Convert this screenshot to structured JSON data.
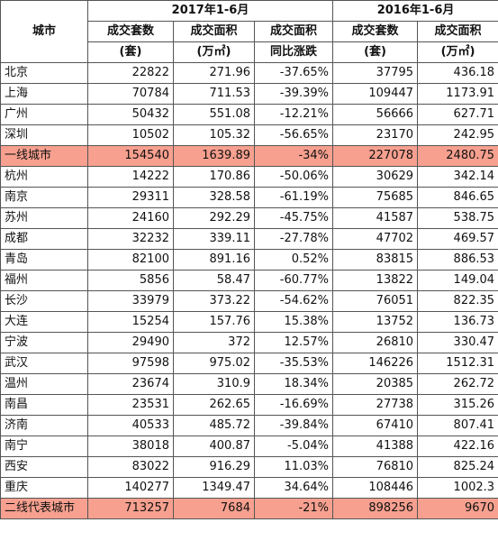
{
  "header": {
    "city_label": "城市",
    "group_2017": "2017年1-6月",
    "group_2016": "2016年1-6月",
    "sub_2017": [
      {
        "top": "成交套数",
        "bottom": "(套)"
      },
      {
        "top": "成交面积",
        "bottom": "(万㎡)"
      },
      {
        "top": "成交面积",
        "bottom": "同比涨跌"
      }
    ],
    "sub_2016": [
      {
        "top": "成交套数",
        "bottom": "(套)"
      },
      {
        "top": "成交面积",
        "bottom": "(万㎡)"
      }
    ]
  },
  "rows": [
    {
      "city": "北京",
      "units_2017": "22822",
      "area_2017": "271.96",
      "yoy": "-37.65%",
      "units_2016": "37795",
      "area_2016": "436.18",
      "highlight": false
    },
    {
      "city": "上海",
      "units_2017": "70784",
      "area_2017": "711.53",
      "yoy": "-39.39%",
      "units_2016": "109447",
      "area_2016": "1173.91",
      "highlight": false
    },
    {
      "city": "广州",
      "units_2017": "50432",
      "area_2017": "551.08",
      "yoy": "-12.21%",
      "units_2016": "56666",
      "area_2016": "627.71",
      "highlight": false
    },
    {
      "city": "深圳",
      "units_2017": "10502",
      "area_2017": "105.32",
      "yoy": "-56.65%",
      "units_2016": "23170",
      "area_2016": "242.95",
      "highlight": false
    },
    {
      "city": "一线城市",
      "units_2017": "154540",
      "area_2017": "1639.89",
      "yoy": "-34%",
      "units_2016": "227078",
      "area_2016": "2480.75",
      "highlight": true
    },
    {
      "city": "杭州",
      "units_2017": "14222",
      "area_2017": "170.86",
      "yoy": "-50.06%",
      "units_2016": "30629",
      "area_2016": "342.14",
      "highlight": false
    },
    {
      "city": "南京",
      "units_2017": "29311",
      "area_2017": "328.58",
      "yoy": "-61.19%",
      "units_2016": "75685",
      "area_2016": "846.65",
      "highlight": false
    },
    {
      "city": "苏州",
      "units_2017": "24160",
      "area_2017": "292.29",
      "yoy": "-45.75%",
      "units_2016": "41587",
      "area_2016": "538.75",
      "highlight": false
    },
    {
      "city": "成都",
      "units_2017": "32232",
      "area_2017": "339.11",
      "yoy": "-27.78%",
      "units_2016": "47702",
      "area_2016": "469.57",
      "highlight": false
    },
    {
      "city": "青岛",
      "units_2017": "82100",
      "area_2017": "891.16",
      "yoy": "0.52%",
      "units_2016": "83815",
      "area_2016": "886.53",
      "highlight": false
    },
    {
      "city": "福州",
      "units_2017": "5856",
      "area_2017": "58.47",
      "yoy": "-60.77%",
      "units_2016": "13822",
      "area_2016": "149.04",
      "highlight": false
    },
    {
      "city": "长沙",
      "units_2017": "33979",
      "area_2017": "373.22",
      "yoy": "-54.62%",
      "units_2016": "76051",
      "area_2016": "822.35",
      "highlight": false
    },
    {
      "city": "大连",
      "units_2017": "15254",
      "area_2017": "157.76",
      "yoy": "15.38%",
      "units_2016": "13752",
      "area_2016": "136.73",
      "highlight": false
    },
    {
      "city": "宁波",
      "units_2017": "29490",
      "area_2017": "372",
      "yoy": "12.57%",
      "units_2016": "26810",
      "area_2016": "330.47",
      "highlight": false
    },
    {
      "city": "武汉",
      "units_2017": "97598",
      "area_2017": "975.02",
      "yoy": "-35.53%",
      "units_2016": "146226",
      "area_2016": "1512.31",
      "highlight": false
    },
    {
      "city": "温州",
      "units_2017": "23674",
      "area_2017": "310.9",
      "yoy": "18.34%",
      "units_2016": "20385",
      "area_2016": "262.72",
      "highlight": false
    },
    {
      "city": "南昌",
      "units_2017": "23531",
      "area_2017": "262.65",
      "yoy": "-16.69%",
      "units_2016": "27738",
      "area_2016": "315.26",
      "highlight": false
    },
    {
      "city": "济南",
      "units_2017": "40533",
      "area_2017": "485.72",
      "yoy": "-39.84%",
      "units_2016": "67410",
      "area_2016": "807.41",
      "highlight": false
    },
    {
      "city": "南宁",
      "units_2017": "38018",
      "area_2017": "400.87",
      "yoy": "-5.04%",
      "units_2016": "41388",
      "area_2016": "422.16",
      "highlight": false
    },
    {
      "city": "西安",
      "units_2017": "83022",
      "area_2017": "916.29",
      "yoy": "11.03%",
      "units_2016": "76810",
      "area_2016": "825.24",
      "highlight": false
    },
    {
      "city": "重庆",
      "units_2017": "140277",
      "area_2017": "1349.47",
      "yoy": "34.64%",
      "units_2016": "108446",
      "area_2016": "1002.3",
      "highlight": false
    },
    {
      "city": "二线代表城市",
      "units_2017": "713257",
      "area_2017": "7684",
      "yoy": "-21%",
      "units_2016": "898256",
      "area_2016": "9670",
      "highlight": true
    }
  ],
  "colors": {
    "highlight_row": "#f7a08f",
    "border": "#555555"
  }
}
